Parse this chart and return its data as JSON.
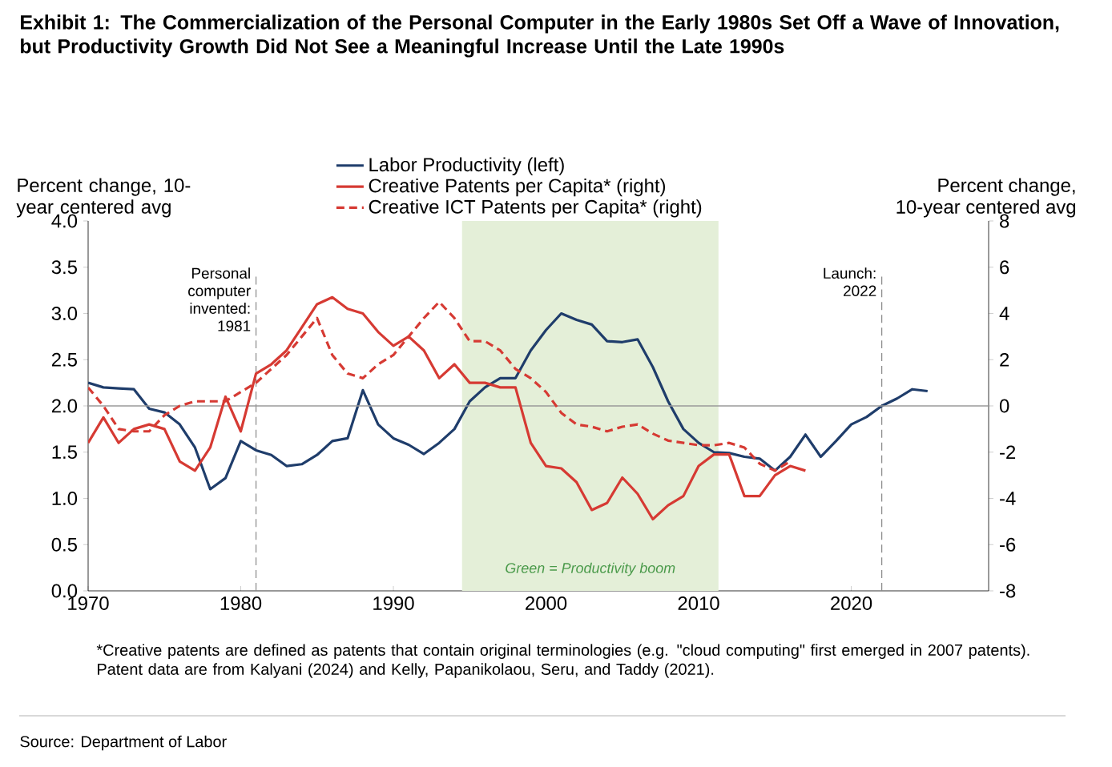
{
  "chart_data": {
    "type": "line",
    "title": "Exhibit 1: The Commercialization of the Personal Computer in the Early 1980s Set Off a Wave of Innovation, but Productivity Growth Did Not See a Meaningful Increase Until the Late 1990s",
    "ylabel": "Percent change, 10-year centered avg",
    "y2label": "Percent change, 10-year centered avg",
    "xlim": [
      1970,
      2029
    ],
    "xticks": [
      1970,
      1980,
      1990,
      2000,
      2010,
      2020
    ],
    "ylim": [
      0,
      4
    ],
    "yticks": [
      {
        "value": 0,
        "label": "0.0"
      },
      {
        "value": 0.5,
        "label": "0.5"
      },
      {
        "value": 1,
        "label": "1.0"
      },
      {
        "value": 1.5,
        "label": "1.5"
      },
      {
        "value": 2,
        "label": "2.0"
      },
      {
        "value": 2.5,
        "label": "2.5"
      },
      {
        "value": 3,
        "label": "3.0"
      },
      {
        "value": 3.5,
        "label": "3.5"
      },
      {
        "value": 4,
        "label": "4.0"
      }
    ],
    "y2lim": [
      -8,
      8
    ],
    "y2ticks": [
      -8,
      -6,
      -4,
      -2,
      0,
      2,
      4,
      6,
      8
    ],
    "grid": false,
    "legend": "top",
    "marker": "none",
    "series": [
      {
        "name": "Labor Productivity (left)",
        "color": "#1f3d6b",
        "line_style": "solid",
        "x": [
          1970,
          1971,
          1972,
          1973,
          1974,
          1975,
          1976,
          1977,
          1978,
          1979,
          1980,
          1981,
          1982,
          1983,
          1984,
          1985,
          1986,
          1987,
          1988,
          1989,
          1990,
          1991,
          1992,
          1993,
          1994,
          1995,
          1996,
          1997,
          1998,
          1999,
          2000,
          2001,
          2002,
          2003,
          2004,
          2005,
          2006,
          2007,
          2008,
          2009,
          2010,
          2011,
          2012,
          2013,
          2014,
          2015,
          2016,
          2017,
          2018,
          2019,
          2020,
          2021,
          2022,
          2023,
          2024,
          2025
        ],
        "values": [
          2.25,
          2.2,
          2.19,
          2.18,
          1.97,
          1.93,
          1.8,
          1.55,
          1.1,
          1.22,
          1.62,
          1.52,
          1.47,
          1.35,
          1.37,
          1.47,
          1.62,
          1.65,
          2.17,
          1.8,
          1.65,
          1.58,
          1.48,
          1.6,
          1.75,
          2.05,
          2.2,
          2.3,
          2.3,
          2.6,
          2.82,
          3.0,
          2.93,
          2.88,
          2.7,
          2.69,
          2.72,
          2.42,
          2.05,
          1.75,
          1.6,
          1.5,
          1.49,
          1.45,
          1.43,
          1.3,
          1.45,
          1.69,
          1.45,
          1.62,
          1.8,
          1.88,
          2.0,
          2.08,
          2.18,
          2.16
        ]
      },
      {
        "name": "Creative Patents per Capita* (right)",
        "color": "#d63a33",
        "line_style": "solid",
        "axis": "y2",
        "x": [
          1970,
          1971,
          1972,
          1973,
          1974,
          1975,
          1976,
          1977,
          1978,
          1979,
          1980,
          1981,
          1982,
          1983,
          1984,
          1985,
          1986,
          1987,
          1988,
          1989,
          1990,
          1991,
          1992,
          1993,
          1994,
          1995,
          1996,
          1997,
          1998,
          1999,
          2000,
          2001,
          2002,
          2003,
          2004,
          2005,
          2006,
          2007,
          2008,
          2009,
          2010,
          2011,
          2012,
          2013,
          2014,
          2015,
          2016,
          2017
        ],
        "values": [
          -1.6,
          -0.5,
          -1.6,
          -1.0,
          -0.8,
          -1.0,
          -2.4,
          -2.8,
          -1.8,
          0.4,
          -1.1,
          1.4,
          1.8,
          2.4,
          3.4,
          4.4,
          4.7,
          4.2,
          4.0,
          3.2,
          2.6,
          3.0,
          2.4,
          1.2,
          1.8,
          1.0,
          1.0,
          0.8,
          0.8,
          -1.6,
          -2.6,
          -2.7,
          -3.3,
          -4.5,
          -4.2,
          -3.1,
          -3.8,
          -4.9,
          -4.3,
          -3.9,
          -2.6,
          -2.1,
          -2.1,
          -3.9,
          -3.9,
          -3.0,
          -2.6,
          -2.8
        ]
      },
      {
        "name": "Creative ICT Patents per Capita* (right)",
        "color": "#d63a33",
        "line_style": "dashed",
        "axis": "y2",
        "x": [
          1970,
          1971,
          1972,
          1973,
          1974,
          1975,
          1976,
          1977,
          1978,
          1979,
          1980,
          1981,
          1982,
          1983,
          1984,
          1985,
          1986,
          1987,
          1988,
          1989,
          1990,
          1991,
          1992,
          1993,
          1994,
          1995,
          1996,
          1997,
          1998,
          1999,
          2000,
          2001,
          2002,
          2003,
          2004,
          2005,
          2006,
          2007,
          2008,
          2009,
          2010,
          2011,
          2012,
          2013,
          2014,
          2015,
          2016
        ],
        "values": [
          0.8,
          0,
          -1.0,
          -1.1,
          -1.1,
          -0.4,
          0,
          0.2,
          0.2,
          0.2,
          0.6,
          1.0,
          1.6,
          2.2,
          3.0,
          3.8,
          2.2,
          1.4,
          1.2,
          1.8,
          2.2,
          3.0,
          3.8,
          4.5,
          3.8,
          2.8,
          2.8,
          2.4,
          1.6,
          1.2,
          0.6,
          -0.3,
          -0.8,
          -0.9,
          -1.1,
          -0.9,
          -0.8,
          -1.2,
          -1.5,
          -1.6,
          -1.7,
          -1.7,
          -1.6,
          -1.8,
          -2.5,
          -2.8,
          -2.4
        ]
      }
    ],
    "ref_lines": [
      {
        "axis": "x",
        "value": 1981,
        "label": "Personal computer invented: 1981",
        "color": "#888888",
        "line_style": "dashed"
      },
      {
        "axis": "x",
        "value": 2022,
        "label": "Launch: 2022",
        "color": "#888888",
        "line_style": "dashed"
      },
      {
        "axis": "y2",
        "value": 0,
        "color": "#9a9a9a",
        "line_style": "solid"
      }
    ],
    "bands": [
      {
        "axis": "x",
        "from": 1994.5,
        "to": 2011.3,
        "label": "Green = Productivity boom",
        "color": "#e4efd8"
      }
    ],
    "annotations": [
      "*Creative patents are defined as patents that contain original terminologies (e.g. \"cloud computing\" first emerged in 2007 patents). Patent data are from Kalyani (2024) and Kelly, Papanikolaou, Seru, and Taddy (2021).",
      "Source: Department of Labor"
    ]
  }
}
